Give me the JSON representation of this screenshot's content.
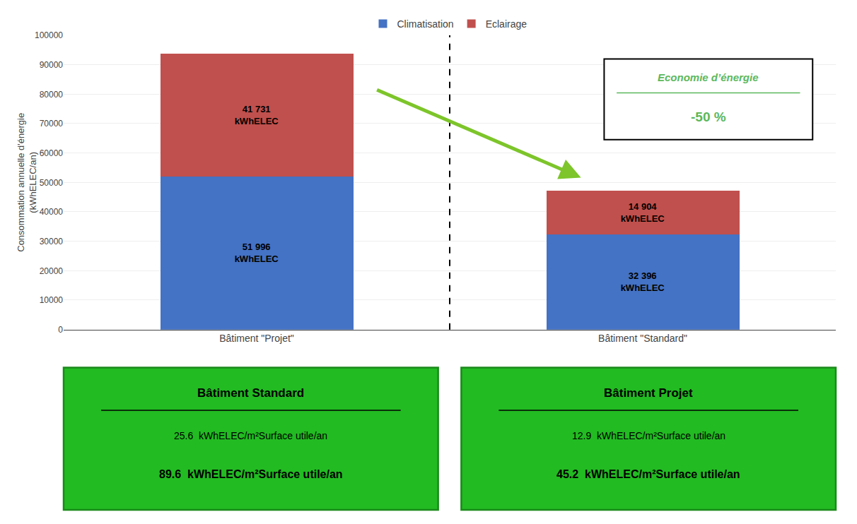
{
  "chart_data": {
    "type": "bar",
    "stacked": true,
    "categories": [
      "Bâtiment \"Projet\"",
      "Bâtiment \"Standard\""
    ],
    "series": [
      {
        "name": "Climatisation",
        "color": "#4472C4",
        "values": [
          51996,
          32396
        ],
        "value_labels": [
          "51 996\nkWhELEC",
          "32 396\nkWhELEC"
        ]
      },
      {
        "name": "Eclairage",
        "color": "#C0504D",
        "values": [
          41731,
          14904
        ],
        "value_labels": [
          "41 731\nkWhELEC",
          "14 904\nkWhELEC"
        ]
      }
    ],
    "ylabel": "Consommation annuelle d'énergie\n(kWhELEC/an)",
    "ylim": [
      0,
      100000
    ],
    "yticks": [
      0,
      10000,
      20000,
      30000,
      40000,
      50000,
      60000,
      70000,
      80000,
      90000,
      100000
    ],
    "grid": true,
    "legend": "top",
    "data_labels": true,
    "annotations": [
      {
        "text": [
          "Economie d’énergie",
          "-50 %"
        ],
        "color": "#5CB85C"
      },
      {
        "type": "arrow",
        "color": "#7DC52A"
      },
      {
        "text": [
          "Bâtiment Standard",
          "25.6  kWhELEC/m²Surface utile/an",
          "89.6  kWhELEC/m²Surface utile/an"
        ],
        "color": "#22BB22"
      },
      {
        "text": [
          "Bâtiment Projet",
          "12.9  kWhELEC/m²Surface utile/an",
          "45.2  kWhELEC/m²Surface utile/an"
        ],
        "color": "#22BB22"
      }
    ]
  }
}
